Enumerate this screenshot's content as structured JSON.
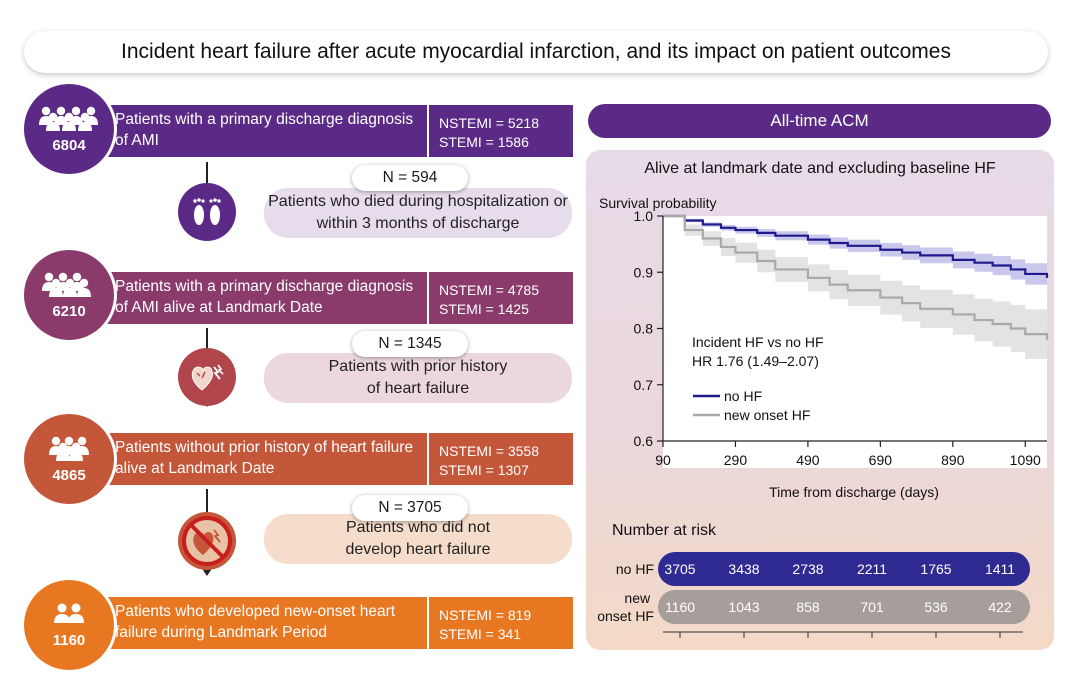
{
  "title": "Incident heart failure after acute myocardial infarction, and its impact on patient outcomes",
  "colors": {
    "stage1": "#5b2a86",
    "stage2": "#8a3b6b",
    "stage3": "#c4563a",
    "stage4": "#e87722",
    "no_hf": "#1f1a8c",
    "new_onset_hf": "#a9a9a9"
  },
  "flow": {
    "stages": [
      {
        "count": "6804",
        "icon": "people-group-icon",
        "description": "Patients with a primary discharge diagnosis of AMI",
        "nstemi": "NSTEMI = 5218",
        "stemi": "STEMI = 1586"
      },
      {
        "count": "6210",
        "icon": "people-group-icon",
        "description": "Patients with a primary discharge diagnosis of AMI alive at Landmark Date",
        "nstemi": "NSTEMI = 4785",
        "stemi": "STEMI = 1425"
      },
      {
        "count": "4865",
        "icon": "people-group-icon",
        "description": "Patients without prior history of heart failure alive at Landmark Date",
        "nstemi": "NSTEMI = 3558",
        "stemi": "STEMI = 1307"
      },
      {
        "count": "1160",
        "icon": "people-group-icon",
        "description": "Patients who developed new-onset heart failure during Landmark Period",
        "nstemi": "NSTEMI = 819",
        "stemi": "STEMI = 341"
      }
    ],
    "exclusions": [
      {
        "n": "N = 594",
        "text": "Patients who died during hospitalization or within 3 months of discharge",
        "icon": "feet-icon"
      },
      {
        "n": "N = 1345",
        "text": "Patients with prior history of heart failure",
        "icon": "heart-failure-icon"
      },
      {
        "n": "N = 3705",
        "text": "Patients who did not develop heart failure",
        "icon": "no-heart-failure-icon"
      }
    ]
  },
  "panel": {
    "header": "All-time ACM",
    "subtitle": "Alive at landmark date and excluding baseline HF",
    "annotation_line1": "Incident HF vs no HF",
    "annotation_line2": "HR 1.76 (1.49–2.07)",
    "risk_title": "Number at risk"
  },
  "chart_data": {
    "type": "line",
    "title": "Alive at landmark date and excluding baseline HF",
    "xlabel": "Time from discharge (days)",
    "ylabel": "Survival probability",
    "xlim": [
      90,
      1150
    ],
    "ylim": [
      0.6,
      1.0
    ],
    "x_ticks": [
      90,
      290,
      490,
      690,
      890,
      1090
    ],
    "y_ticks": [
      0.6,
      0.7,
      0.8,
      0.9,
      1.0
    ],
    "legend_position": "lower-left",
    "series": [
      {
        "name": "no HF",
        "color": "#1f1a8c",
        "x": [
          90,
          150,
          200,
          250,
          290,
          350,
          400,
          490,
          550,
          600,
          690,
          750,
          800,
          890,
          950,
          1000,
          1050,
          1090,
          1150
        ],
        "y": [
          1.0,
          0.992,
          0.985,
          0.979,
          0.975,
          0.97,
          0.965,
          0.958,
          0.952,
          0.947,
          0.94,
          0.935,
          0.93,
          0.922,
          0.917,
          0.912,
          0.905,
          0.897,
          0.89
        ],
        "ci_lower": [
          1.0,
          0.989,
          0.981,
          0.974,
          0.969,
          0.963,
          0.957,
          0.949,
          0.942,
          0.936,
          0.928,
          0.922,
          0.916,
          0.907,
          0.901,
          0.895,
          0.887,
          0.878,
          0.87
        ],
        "ci_upper": [
          1.0,
          0.995,
          0.989,
          0.984,
          0.981,
          0.977,
          0.973,
          0.967,
          0.962,
          0.958,
          0.952,
          0.948,
          0.944,
          0.937,
          0.933,
          0.929,
          0.923,
          0.916,
          0.91
        ]
      },
      {
        "name": "new onset HF",
        "color": "#a9a9a9",
        "x": [
          90,
          150,
          200,
          250,
          290,
          350,
          400,
          490,
          550,
          600,
          690,
          750,
          800,
          890,
          950,
          1000,
          1050,
          1090,
          1150
        ],
        "y": [
          1.0,
          0.975,
          0.96,
          0.945,
          0.935,
          0.92,
          0.905,
          0.89,
          0.878,
          0.868,
          0.855,
          0.845,
          0.835,
          0.825,
          0.815,
          0.808,
          0.8,
          0.79,
          0.78
        ],
        "ci_lower": [
          1.0,
          0.965,
          0.947,
          0.929,
          0.917,
          0.9,
          0.883,
          0.866,
          0.852,
          0.84,
          0.825,
          0.813,
          0.801,
          0.789,
          0.777,
          0.768,
          0.758,
          0.746,
          0.733
        ],
        "ci_upper": [
          1.0,
          0.985,
          0.973,
          0.961,
          0.953,
          0.94,
          0.927,
          0.914,
          0.904,
          0.896,
          0.885,
          0.877,
          0.869,
          0.861,
          0.853,
          0.848,
          0.842,
          0.834,
          0.827
        ]
      }
    ],
    "risk_table": {
      "rows": [
        {
          "label": "no HF",
          "values": [
            3705,
            3438,
            2738,
            2211,
            1765,
            1411
          ]
        },
        {
          "label": "new onset HF",
          "values": [
            1160,
            1043,
            858,
            701,
            536,
            422
          ]
        }
      ]
    }
  }
}
